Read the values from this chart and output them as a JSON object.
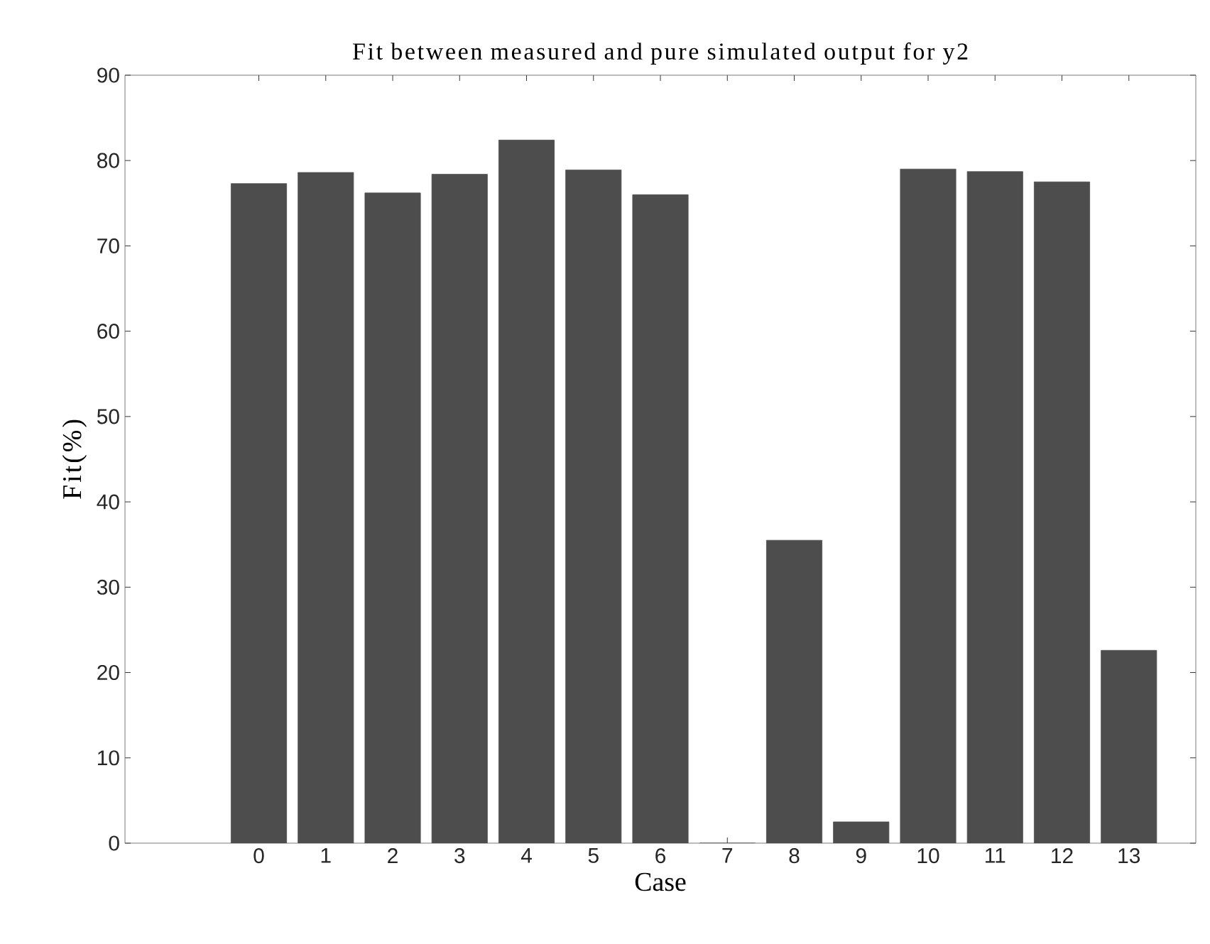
{
  "chart_data": {
    "type": "bar",
    "title": "Fit between measured and pure simulated output for y2",
    "xlabel": "Case",
    "ylabel": "Fit(%)",
    "x": [
      0,
      1,
      2,
      3,
      4,
      5,
      6,
      7,
      8,
      9,
      10,
      11,
      12,
      13
    ],
    "values": [
      77.3,
      78.6,
      76.2,
      78.4,
      82.4,
      78.9,
      76.0,
      0,
      35.5,
      2.5,
      79.0,
      78.7,
      77.5,
      22.6
    ],
    "color": "#4d4d4d",
    "xlim": [
      -2,
      14
    ],
    "xticks": [
      0,
      1,
      2,
      3,
      4,
      5,
      6,
      7,
      8,
      9,
      10,
      11,
      12,
      13
    ],
    "ylim": [
      0,
      90
    ],
    "yticks": [
      0,
      10,
      20,
      30,
      40,
      50,
      60,
      70,
      80,
      90
    ],
    "grid": false
  }
}
